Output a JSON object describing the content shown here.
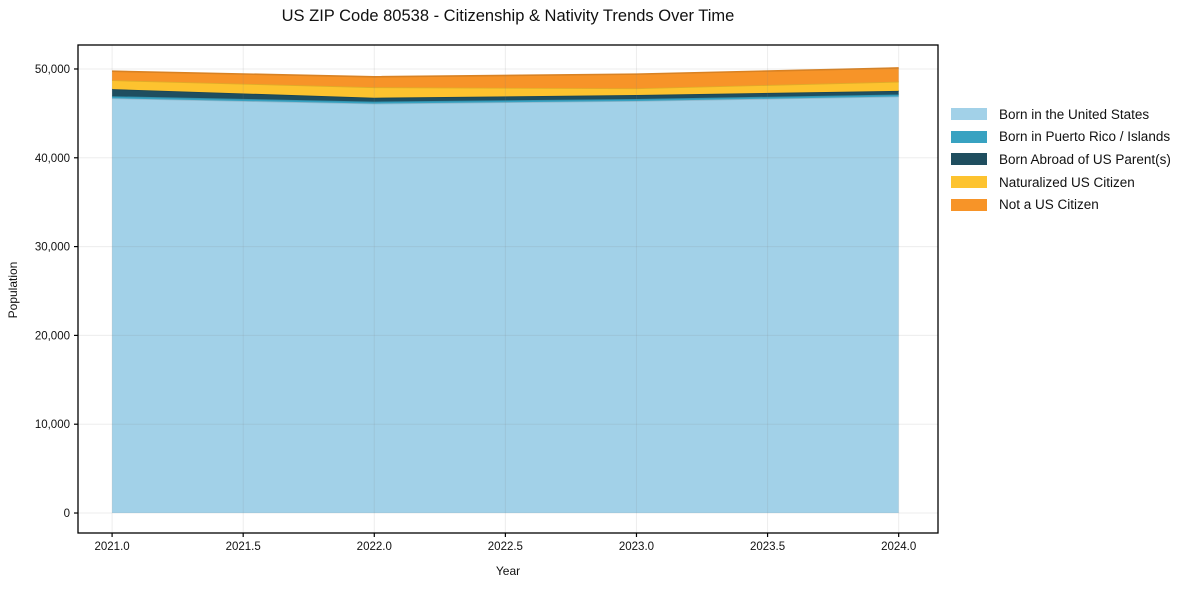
{
  "chart_data": {
    "type": "area",
    "stacked": true,
    "title": "US ZIP Code 80538 - Citizenship & Nativity Trends Over Time",
    "xlabel": "Year",
    "ylabel": "Population",
    "x": [
      2021,
      2022,
      2023,
      2024
    ],
    "series": [
      {
        "name": "Born in the United States",
        "color": "#a2d1e8",
        "values": [
          46700,
          46100,
          46400,
          46900
        ]
      },
      {
        "name": "Born in Puerto Rico / Islands",
        "color": "#38a2c1",
        "values": [
          230,
          230,
          220,
          230
        ]
      },
      {
        "name": "Born Abroad of US Parent(s)",
        "color": "#1f4e5f",
        "values": [
          800,
          430,
          450,
          410
        ]
      },
      {
        "name": "Naturalized US Citizen",
        "color": "#fdc32f",
        "values": [
          1000,
          1180,
          750,
          1030
        ]
      },
      {
        "name": "Not a US Citizen",
        "color": "#f79428",
        "values": [
          1020,
          1180,
          1600,
          1550
        ]
      }
    ],
    "xticks": [
      2021.0,
      2021.5,
      2022.0,
      2022.5,
      2023.0,
      2023.5,
      2024.0
    ],
    "xtick_labels": [
      "2021.0",
      "2021.5",
      "2022.0",
      "2022.5",
      "2023.0",
      "2023.5",
      "2024.0"
    ],
    "yticks": [
      0,
      10000,
      20000,
      30000,
      40000,
      50000
    ],
    "ytick_labels": [
      "0",
      "10,000",
      "20,000",
      "30,000",
      "40,000",
      "50,000"
    ],
    "xlim": [
      2020.87,
      2024.15
    ],
    "ylim": [
      -2250,
      52700
    ],
    "grid": true,
    "legend_position": "right-outside",
    "axis_color": "#000000",
    "grid_color_rgba": "rgba(130,130,130,0.14)"
  }
}
